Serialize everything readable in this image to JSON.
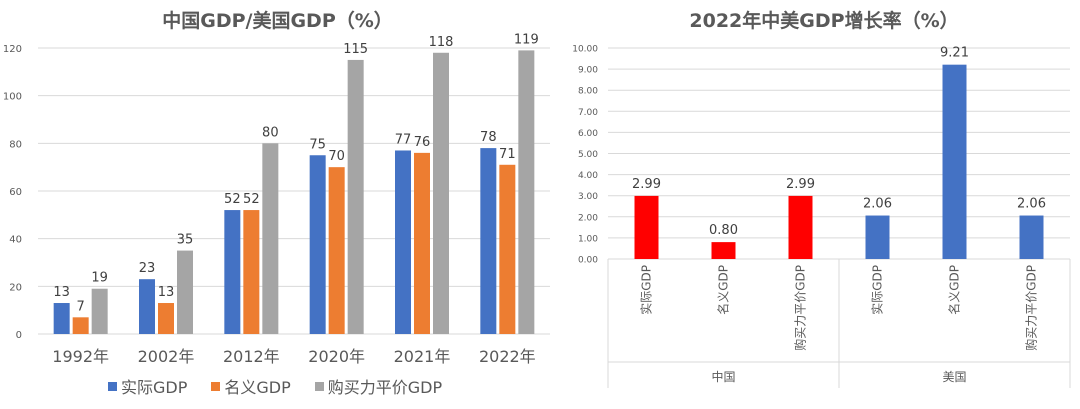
{
  "chart_data": [
    {
      "type": "bar",
      "title": "中国GDP/美国GDP（%）",
      "categories": [
        "1992年",
        "2002年",
        "2012年",
        "2020年",
        "2021年",
        "2022年"
      ],
      "series": [
        {
          "name": "实际GDP",
          "color": "#4472C4",
          "values": [
            13,
            23,
            52,
            75,
            77,
            78
          ]
        },
        {
          "name": "名义GDP",
          "color": "#ED7D31",
          "values": [
            7,
            13,
            52,
            70,
            76,
            71
          ]
        },
        {
          "name": "购买力平价GDP",
          "color": "#A5A5A5",
          "values": [
            19,
            35,
            80,
            115,
            118,
            119
          ]
        }
      ],
      "ylim": [
        0,
        120
      ],
      "yticks": [
        "0",
        "20",
        "40",
        "60",
        "80",
        "100",
        "120"
      ],
      "grid": true,
      "legend": "bottom"
    },
    {
      "type": "bar",
      "title": "2022年中美GDP增长率（%）",
      "groups": [
        {
          "name": "中国",
          "categories": [
            "实际GDP",
            "名义GDP",
            "购买力平价GDP"
          ],
          "values": [
            2.99,
            0.8,
            2.99
          ],
          "labels": [
            "2.99",
            "0.80",
            "2.99"
          ],
          "color": "#FF0000"
        },
        {
          "name": "美国",
          "categories": [
            "实际GDP",
            "名义GDP",
            "购买力平价GDP"
          ],
          "values": [
            2.06,
            9.21,
            2.06
          ],
          "labels": [
            "2.06",
            "9.21",
            "2.06"
          ],
          "color": "#4472C4"
        }
      ],
      "ylim": [
        0,
        10
      ],
      "yticks": [
        "0.00",
        "1.00",
        "2.00",
        "3.00",
        "4.00",
        "5.00",
        "6.00",
        "7.00",
        "8.00",
        "9.00",
        "10.00"
      ],
      "grid": true
    }
  ]
}
